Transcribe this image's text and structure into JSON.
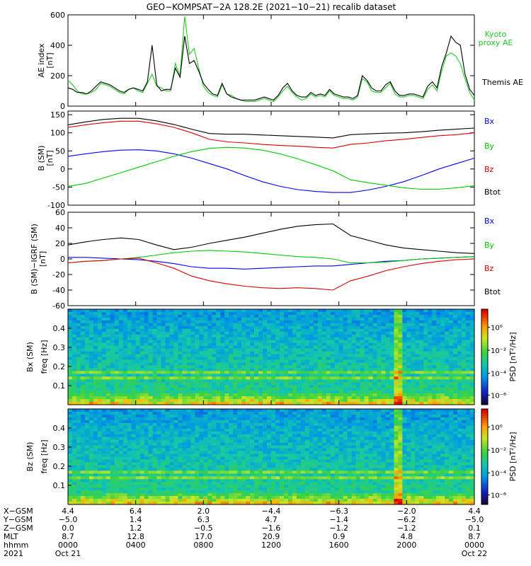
{
  "title": "GEO−KOMPSAT−2A 128.2E (2021−10−21) recalib dataset",
  "colors": {
    "bx": "#0000ff",
    "by": "#00cc00",
    "bz": "#dd0000",
    "btot": "#000000",
    "kyoto": "#22cc22",
    "themis": "#000000"
  },
  "chart_data": [
    {
      "type": "line",
      "ylabel": "AE index [nT]",
      "ylim": [
        0,
        600
      ],
      "yticks": [
        0,
        200,
        400,
        600
      ],
      "legend_placement": "right",
      "series": [
        {
          "name": "Kyoto proxy AE",
          "values": [
            170,
            140,
            100,
            80,
            80,
            90,
            110,
            150,
            140,
            130,
            110,
            90,
            80,
            110,
            120,
            100,
            90,
            150,
            210,
            130,
            120,
            100,
            100,
            280,
            200,
            590,
            340,
            380,
            250,
            130,
            90,
            70,
            60,
            140,
            80,
            70,
            50,
            40,
            30,
            30,
            30,
            40,
            50,
            40,
            30,
            60,
            100,
            130,
            90,
            60,
            40,
            50,
            80,
            60,
            70,
            60,
            100,
            70,
            60,
            50,
            50,
            40,
            60,
            180,
            160,
            100,
            90,
            90,
            120,
            150,
            80,
            60,
            60,
            70,
            70,
            60,
            50,
            110,
            140,
            100,
            230,
            330,
            350,
            330,
            280,
            180,
            90,
            40
          ]
        },
        {
          "name": "Themis AE",
          "values": [
            120,
            110,
            90,
            90,
            80,
            100,
            130,
            160,
            150,
            140,
            120,
            100,
            90,
            110,
            120,
            110,
            100,
            160,
            400,
            140,
            100,
            110,
            110,
            250,
            190,
            460,
            280,
            300,
            230,
            150,
            110,
            80,
            70,
            150,
            80,
            60,
            50,
            40,
            40,
            40,
            40,
            50,
            60,
            50,
            40,
            70,
            120,
            150,
            100,
            70,
            60,
            60,
            90,
            70,
            80,
            70,
            110,
            80,
            70,
            60,
            60,
            50,
            70,
            200,
            170,
            120,
            100,
            100,
            140,
            160,
            100,
            70,
            70,
            80,
            80,
            70,
            60,
            130,
            160,
            120,
            260,
            350,
            460,
            420,
            400,
            210,
            110,
            70
          ]
        }
      ],
      "right_labels": [
        "Kyoto",
        "proxy AE",
        "Themis AE"
      ]
    },
    {
      "type": "line",
      "ylabel": "B (SM) [nT]",
      "ylim": [
        -100,
        160
      ],
      "yticks": [
        -100,
        -50,
        0,
        50,
        100,
        150
      ],
      "legend_placement": "right",
      "series": [
        {
          "name": "Bx",
          "values": [
            35,
            42,
            48,
            52,
            53,
            50,
            42,
            30,
            15,
            0,
            -18,
            -35,
            -48,
            -57,
            -62,
            -65,
            -65,
            -58,
            -48,
            -35,
            -18,
            0,
            15,
            30
          ]
        },
        {
          "name": "By",
          "values": [
            -48,
            -40,
            -25,
            -10,
            5,
            20,
            35,
            48,
            57,
            60,
            58,
            52,
            42,
            28,
            12,
            -5,
            -30,
            -38,
            -45,
            -52,
            -56,
            -56,
            -52,
            -46
          ]
        },
        {
          "name": "Bz",
          "values": [
            115,
            122,
            128,
            132,
            132,
            125,
            115,
            100,
            82,
            75,
            72,
            68,
            65,
            63,
            60,
            58,
            68,
            72,
            78,
            82,
            87,
            92,
            95,
            100
          ]
        },
        {
          "name": "Btot",
          "values": [
            122,
            130,
            137,
            140,
            140,
            133,
            123,
            110,
            98,
            96,
            96,
            94,
            92,
            90,
            88,
            86,
            95,
            97,
            99,
            100,
            103,
            107,
            110,
            113
          ]
        }
      ],
      "right_labels": [
        "Bx",
        "By",
        "Bz",
        "Btot"
      ]
    },
    {
      "type": "line",
      "ylabel": "B (SM)−IGRF (SM) [nT]",
      "ylim": [
        -60,
        60
      ],
      "yticks": [
        -60,
        -40,
        -20,
        0,
        20,
        40,
        60
      ],
      "legend_placement": "right",
      "series": [
        {
          "name": "Bx",
          "values": [
            2,
            2,
            1,
            0,
            -1,
            -3,
            -6,
            -10,
            -12,
            -12,
            -13,
            -12,
            -11,
            -10,
            -9,
            -9,
            -7,
            -5,
            -3,
            -2,
            0,
            1,
            2,
            3
          ]
        },
        {
          "name": "By",
          "values": [
            -5,
            -3,
            -2,
            0,
            2,
            5,
            8,
            10,
            11,
            10,
            9,
            7,
            5,
            3,
            2,
            0,
            -5,
            -5,
            -4,
            -2,
            0,
            1,
            2,
            3
          ]
        },
        {
          "name": "Bz",
          "values": [
            -5,
            -3,
            -2,
            0,
            1,
            -5,
            -12,
            -22,
            -28,
            -32,
            -35,
            -37,
            -38,
            -37,
            -38,
            -40,
            -28,
            -22,
            -15,
            -10,
            -6,
            -3,
            -1,
            0
          ]
        },
        {
          "name": "Btot",
          "values": [
            18,
            22,
            25,
            27,
            25,
            18,
            12,
            15,
            20,
            24,
            28,
            33,
            38,
            42,
            44,
            45,
            30,
            24,
            18,
            14,
            12,
            10,
            8,
            7
          ]
        }
      ],
      "right_labels": [
        "Bx",
        "By",
        "Bz",
        "Btot"
      ]
    },
    {
      "type": "heatmap",
      "ylabel": "Bx (SM) freq [Hz]",
      "ylim": [
        0,
        0.5
      ],
      "yticks": [
        "0.1",
        "0.2",
        "0.3",
        "0.4"
      ],
      "colorbar_label": "PSD [nT²/Hz]",
      "colorbar_ticks": [
        "10⁰",
        "10⁻²",
        "10⁻⁴",
        "10⁻⁶"
      ]
    },
    {
      "type": "heatmap",
      "ylabel": "Bz (SM) freq [Hz]",
      "ylim": [
        0,
        0.5
      ],
      "yticks": [
        "0.1",
        "0.2",
        "0.3",
        "0.4"
      ],
      "colorbar_label": "PSD [nT²/Hz]",
      "colorbar_ticks": [
        "10⁰",
        "10⁻²",
        "10⁻⁴",
        "10⁻⁶"
      ]
    }
  ],
  "bottom_axis": {
    "row_labels": [
      "X−GSM",
      "Y−GSM",
      "Z−GSM",
      "MLT",
      "hhmm",
      "2021"
    ],
    "columns": [
      [
        "4.4",
        "−5.0",
        "0.0",
        "8.7",
        "0000",
        "Oct 21"
      ],
      [
        "6.4",
        "1.4",
        "1.2",
        "12.8",
        "0400",
        ""
      ],
      [
        "2.0",
        "6.3",
        "−0.5",
        "17.0",
        "0800",
        ""
      ],
      [
        "−4.4",
        "4.7",
        "−1.6",
        "20.9",
        "1200",
        ""
      ],
      [
        "−6.3",
        "−1.4",
        "−1.2",
        "0.9",
        "1600",
        ""
      ],
      [
        "−2.0",
        "−6.2",
        "−1.2",
        "4.8",
        "2000",
        ""
      ],
      [
        "4.4",
        "−5.0",
        "0.1",
        "8.7",
        "0000",
        "Oct 22"
      ]
    ]
  }
}
